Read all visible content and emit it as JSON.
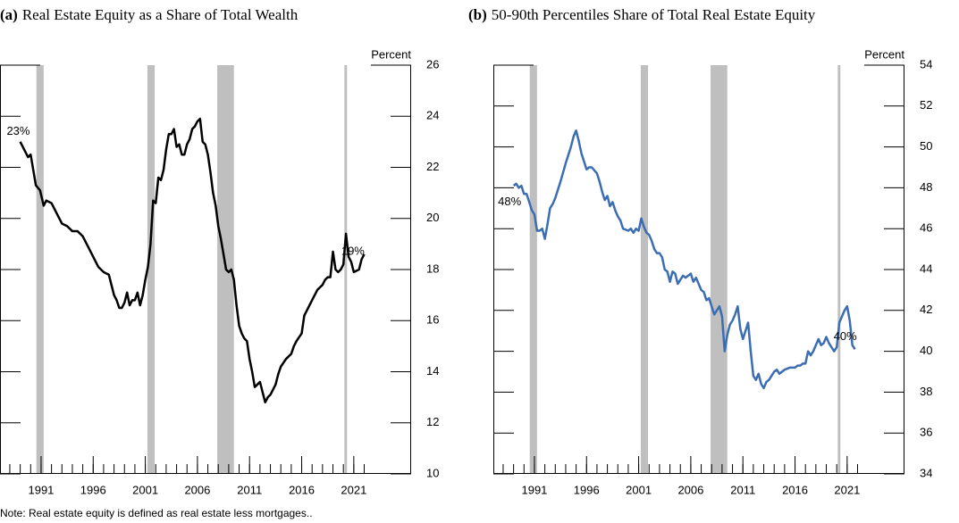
{
  "chart_data": [
    {
      "type": "line",
      "label": "(a)",
      "title": "Real Estate Equity as a Share of Total Wealth",
      "ylabel": "Percent",
      "color": "#000000",
      "x": [
        1989,
        1989.5,
        1989.75,
        1990,
        1990.25,
        1990.5,
        1990.9,
        1991.25,
        1991.5,
        1992,
        1992.5,
        1993,
        1993.5,
        1994,
        1994.5,
        1995,
        1995.5,
        1996,
        1996.5,
        1997,
        1997.5,
        1997.75,
        1998,
        1998.25,
        1998.5,
        1998.75,
        1999,
        1999.25,
        1999.5,
        1999.75,
        2000,
        2000.25,
        2000.5,
        2000.75,
        2001,
        2001.25,
        2001.5,
        2001.75,
        2002,
        2002.25,
        2002.5,
        2002.75,
        2003,
        2003.25,
        2003.5,
        2003.75,
        2004,
        2004.25,
        2004.5,
        2004.75,
        2005,
        2005.25,
        2005.5,
        2005.75,
        2006,
        2006.25,
        2006.5,
        2006.75,
        2007,
        2007.25,
        2007.5,
        2007.75,
        2008,
        2008.25,
        2008.5,
        2008.75,
        2009,
        2009.25,
        2009.5,
        2009.75,
        2010,
        2010.25,
        2010.5,
        2010.75,
        2011,
        2011.25,
        2011.5,
        2011.75,
        2012,
        2012.25,
        2012.5,
        2012.75,
        2013,
        2013.25,
        2013.5,
        2013.75,
        2014,
        2014.5,
        2015,
        2015.25,
        2015.5,
        2016,
        2016.25,
        2016.5,
        2017,
        2017.5,
        2018,
        2018.25,
        2018.5,
        2018.75,
        2019,
        2019.25,
        2019.5,
        2019.75,
        2020,
        2020.25,
        2020.5,
        2020.75,
        2021,
        2021.5,
        2021.75,
        2022
      ],
      "values": [
        23,
        22.6,
        22.4,
        22.5,
        21.9,
        21.3,
        21.1,
        20.5,
        20.7,
        20.6,
        20.2,
        19.8,
        19.7,
        19.5,
        19.5,
        19.3,
        18.9,
        18.5,
        18.1,
        17.9,
        17.8,
        17.4,
        17,
        16.8,
        16.5,
        16.5,
        16.7,
        17.1,
        16.6,
        16.8,
        16.8,
        17.1,
        16.6,
        17,
        17.6,
        18.1,
        19,
        20.7,
        20.6,
        21.6,
        21.5,
        21.9,
        22.7,
        23.3,
        23.3,
        23.5,
        22.8,
        22.9,
        22.5,
        22.5,
        22.9,
        23.1,
        23.5,
        23.6,
        23.8,
        23.9,
        23,
        22.9,
        22.5,
        21.8,
        21,
        20.5,
        19.7,
        19.2,
        18.6,
        18,
        17.9,
        18,
        17.6,
        16.6,
        15.8,
        15.5,
        15.3,
        15.2,
        14.5,
        14,
        13.4,
        13.5,
        13.6,
        13.2,
        12.8,
        13,
        13.1,
        13.3,
        13.5,
        13.9,
        14.2,
        14.5,
        14.7,
        15,
        15.2,
        15.5,
        16.2,
        16.4,
        16.8,
        17.2,
        17.4,
        17.6,
        17.7,
        17.7,
        18.7,
        18,
        17.9,
        18,
        18.2,
        19.4,
        18.5,
        18.3,
        17.9,
        18,
        18.4,
        18.6
      ],
      "xlim": [
        1987.06,
        2026.5
      ],
      "ylim": [
        10,
        26
      ],
      "xticks": [
        1991,
        1996,
        2001,
        2006,
        2011,
        2016,
        2021
      ],
      "xminor": [
        1988,
        1989,
        1990,
        1991,
        1992,
        1993,
        1994,
        1995,
        1996,
        1997,
        1998,
        1999,
        2000,
        2001,
        2002,
        2003,
        2004,
        2005,
        2006,
        2007,
        2008,
        2009,
        2010,
        2011,
        2012,
        2013,
        2014,
        2015,
        2016,
        2017,
        2018,
        2019,
        2020,
        2021,
        2022
      ],
      "yticks": [
        10,
        12,
        14,
        16,
        18,
        20,
        22,
        24,
        26
      ],
      "shaded_periods": [
        [
          1990.55,
          1991.25
        ],
        [
          2001.2,
          2001.9
        ],
        [
          2007.9,
          2009.5
        ],
        [
          2020.1,
          2020.35
        ]
      ],
      "annotations": [
        {
          "text": "23%",
          "x": 1987.7,
          "y": 23.4
        },
        {
          "text": "19%",
          "x": 2019.8,
          "y": 18.7
        }
      ]
    },
    {
      "type": "line",
      "label": "(b)",
      "title": "50-90th Percentiles Share of Total Real Estate Equity",
      "ylabel": "Percent",
      "color": "#3b6db3",
      "x": [
        1989,
        1989.25,
        1989.5,
        1989.75,
        1990,
        1990.25,
        1990.5,
        1990.75,
        1991,
        1991.25,
        1991.5,
        1991.75,
        1992,
        1992.25,
        1992.5,
        1992.75,
        1993,
        1993.5,
        1994,
        1994.5,
        1994.75,
        1995,
        1995.25,
        1995.5,
        1995.75,
        1996,
        1996.25,
        1996.5,
        1997,
        1997.25,
        1997.5,
        1997.75,
        1998,
        1998.25,
        1998.5,
        1998.75,
        1999,
        1999.25,
        1999.5,
        2000,
        2000.25,
        2000.5,
        2000.75,
        2001,
        2001.25,
        2001.5,
        2001.75,
        2002,
        2002.25,
        2002.5,
        2002.75,
        2003,
        2003.25,
        2003.5,
        2003.75,
        2004,
        2004.25,
        2004.5,
        2004.75,
        2005,
        2005.25,
        2005.5,
        2005.75,
        2006,
        2006.25,
        2006.5,
        2006.75,
        2007,
        2007.25,
        2007.5,
        2007.75,
        2008,
        2008.25,
        2008.5,
        2008.75,
        2009,
        2009.25,
        2009.5,
        2009.75,
        2010,
        2010.25,
        2010.5,
        2010.75,
        2011,
        2011.25,
        2011.5,
        2011.75,
        2012,
        2012.25,
        2012.5,
        2012.75,
        2013,
        2013.25,
        2013.5,
        2013.75,
        2014,
        2014.25,
        2014.5,
        2014.75,
        2015,
        2015.5,
        2016,
        2016.25,
        2016.5,
        2016.75,
        2017,
        2017.25,
        2017.5,
        2017.75,
        2018,
        2018.25,
        2018.5,
        2018.75,
        2019,
        2019.25,
        2019.5,
        2019.75,
        2020,
        2020.25,
        2020.5,
        2020.75,
        2021,
        2021.25,
        2021.5,
        2021.75
      ],
      "values": [
        48.1,
        48.2,
        48,
        48.1,
        47.7,
        47.7,
        47.3,
        46.9,
        46.7,
        45.9,
        45.9,
        46,
        45.5,
        46.2,
        47,
        47.2,
        47.5,
        48.3,
        49.2,
        50,
        50.5,
        50.8,
        50.3,
        49.7,
        49.3,
        48.9,
        49,
        49,
        48.7,
        48.3,
        47.8,
        47.4,
        47.6,
        47.1,
        47.3,
        46.9,
        46.6,
        46.4,
        46,
        45.9,
        46,
        45.8,
        46,
        45.9,
        46.5,
        46.1,
        45.8,
        45.7,
        45.4,
        45,
        44.8,
        44.8,
        44.6,
        44,
        43.9,
        43.4,
        43.9,
        43.8,
        43.3,
        43.5,
        43.7,
        43.6,
        43.7,
        43.8,
        43.4,
        43.6,
        43.3,
        43,
        42.9,
        42.5,
        42.6,
        42.2,
        41.8,
        42,
        42.2,
        41.7,
        40,
        40.8,
        41.3,
        41.5,
        41.8,
        42.2,
        41.1,
        40.6,
        41,
        41.4,
        40,
        38.8,
        38.6,
        38.9,
        38.4,
        38.2,
        38.5,
        38.6,
        38.8,
        39,
        39.1,
        38.9,
        39,
        39.1,
        39.2,
        39.2,
        39.3,
        39.3,
        39.4,
        39.4,
        40,
        39.8,
        40,
        40.3,
        40.6,
        40.3,
        40.4,
        40.7,
        40.4,
        40.2,
        40,
        40.2,
        41.4,
        41.7,
        42,
        42.2,
        41.5,
        40.3,
        40.1
      ],
      "xlim": [
        1987.06,
        2026.5
      ],
      "ylim": [
        34,
        54
      ],
      "xticks": [
        1991,
        1996,
        2001,
        2006,
        2011,
        2016,
        2021
      ],
      "xminor": [
        1988,
        1989,
        1990,
        1991,
        1992,
        1993,
        1994,
        1995,
        1996,
        1997,
        1998,
        1999,
        2000,
        2001,
        2002,
        2003,
        2004,
        2005,
        2006,
        2007,
        2008,
        2009,
        2010,
        2011,
        2012,
        2013,
        2014,
        2015,
        2016,
        2017,
        2018,
        2019,
        2020,
        2021,
        2022
      ],
      "yticks": [
        34,
        36,
        38,
        40,
        42,
        44,
        46,
        48,
        50,
        52,
        54
      ],
      "shaded_periods": [
        [
          1990.55,
          1991.25
        ],
        [
          2001.2,
          2001.9
        ],
        [
          2007.9,
          2009.5
        ],
        [
          2020.1,
          2020.35
        ]
      ],
      "annotations": [
        {
          "text": "48%",
          "x": 1987.5,
          "y": 47.3
        },
        {
          "text": "40%",
          "x": 2019.7,
          "y": 40.7
        }
      ]
    }
  ],
  "note": "Note: Real estate equity is defined as real estate less mortgages.."
}
